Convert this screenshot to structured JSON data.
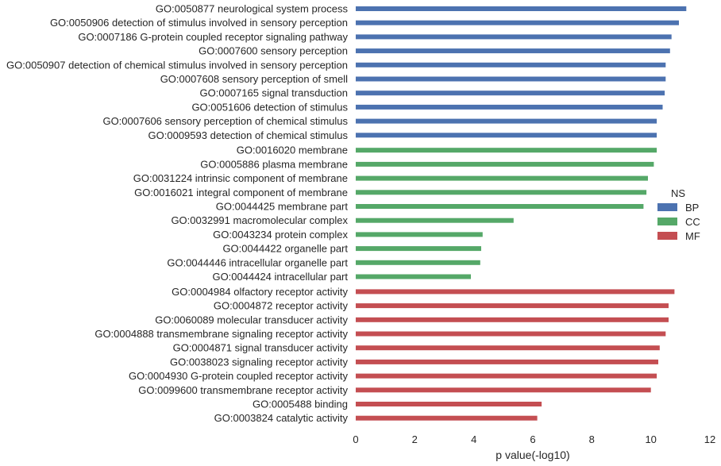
{
  "chart_data": {
    "type": "bar",
    "orientation": "horizontal",
    "title": "",
    "xlabel": "p value(-log10)",
    "ylabel": "",
    "xlim": [
      0,
      12
    ],
    "xticks": [
      0,
      2,
      4,
      6,
      8,
      10,
      12
    ],
    "grid": false,
    "legend": {
      "title": "NS",
      "placement": "right",
      "entries": [
        {
          "name": "BP",
          "color": "#4c72b0"
        },
        {
          "name": "CC",
          "color": "#55a868"
        },
        {
          "name": "MF",
          "color": "#c44e52"
        }
      ]
    },
    "bars": [
      {
        "label": "GO:0050877 neurological system process",
        "value": 11.2,
        "ns": "BP"
      },
      {
        "label": "GO:0050906 detection of stimulus involved in sensory perception",
        "value": 10.95,
        "ns": "BP"
      },
      {
        "label": "GO:0007186 G-protein coupled receptor signaling pathway",
        "value": 10.7,
        "ns": "BP"
      },
      {
        "label": "GO:0007600 sensory perception",
        "value": 10.65,
        "ns": "BP"
      },
      {
        "label": "GO:0050907 detection of chemical stimulus involved in sensory perception",
        "value": 10.5,
        "ns": "BP"
      },
      {
        "label": "GO:0007608 sensory perception of smell",
        "value": 10.5,
        "ns": "BP"
      },
      {
        "label": "GO:0007165 signal transduction",
        "value": 10.47,
        "ns": "BP"
      },
      {
        "label": "GO:0051606 detection of stimulus",
        "value": 10.4,
        "ns": "BP"
      },
      {
        "label": "GO:0007606 sensory perception of chemical stimulus",
        "value": 10.2,
        "ns": "BP"
      },
      {
        "label": "GO:0009593 detection of chemical stimulus",
        "value": 10.2,
        "ns": "BP"
      },
      {
        "label": "GO:0016020 membrane",
        "value": 10.2,
        "ns": "CC"
      },
      {
        "label": "GO:0005886 plasma membrane",
        "value": 10.1,
        "ns": "CC"
      },
      {
        "label": "GO:0031224 intrinsic component of membrane",
        "value": 9.9,
        "ns": "CC"
      },
      {
        "label": "GO:0016021 integral component of membrane",
        "value": 9.85,
        "ns": "CC"
      },
      {
        "label": "GO:0044425 membrane part",
        "value": 9.75,
        "ns": "CC"
      },
      {
        "label": "GO:0032991 macromolecular complex",
        "value": 5.35,
        "ns": "CC"
      },
      {
        "label": "GO:0043234 protein complex",
        "value": 4.3,
        "ns": "CC"
      },
      {
        "label": "GO:0044422 organelle part",
        "value": 4.25,
        "ns": "CC"
      },
      {
        "label": "GO:0044446 intracellular organelle part",
        "value": 4.22,
        "ns": "CC"
      },
      {
        "label": "GO:0044424 intracellular part",
        "value": 3.9,
        "ns": "CC"
      },
      {
        "label": "GO:0004984 olfactory receptor activity",
        "value": 10.8,
        "ns": "MF"
      },
      {
        "label": "GO:0004872 receptor activity",
        "value": 10.6,
        "ns": "MF"
      },
      {
        "label": "GO:0060089 molecular transducer activity",
        "value": 10.6,
        "ns": "MF"
      },
      {
        "label": "GO:0004888 transmembrane signaling receptor activity",
        "value": 10.5,
        "ns": "MF"
      },
      {
        "label": "GO:0004871 signal transducer activity",
        "value": 10.3,
        "ns": "MF"
      },
      {
        "label": "GO:0038023 signaling receptor activity",
        "value": 10.25,
        "ns": "MF"
      },
      {
        "label": "GO:0004930 G-protein coupled receptor activity",
        "value": 10.2,
        "ns": "MF"
      },
      {
        "label": "GO:0099600 transmembrane receptor activity",
        "value": 10.0,
        "ns": "MF"
      },
      {
        "label": "GO:0005488 binding",
        "value": 6.3,
        "ns": "MF"
      },
      {
        "label": "GO:0003824 catalytic activity",
        "value": 6.15,
        "ns": "MF"
      }
    ]
  }
}
